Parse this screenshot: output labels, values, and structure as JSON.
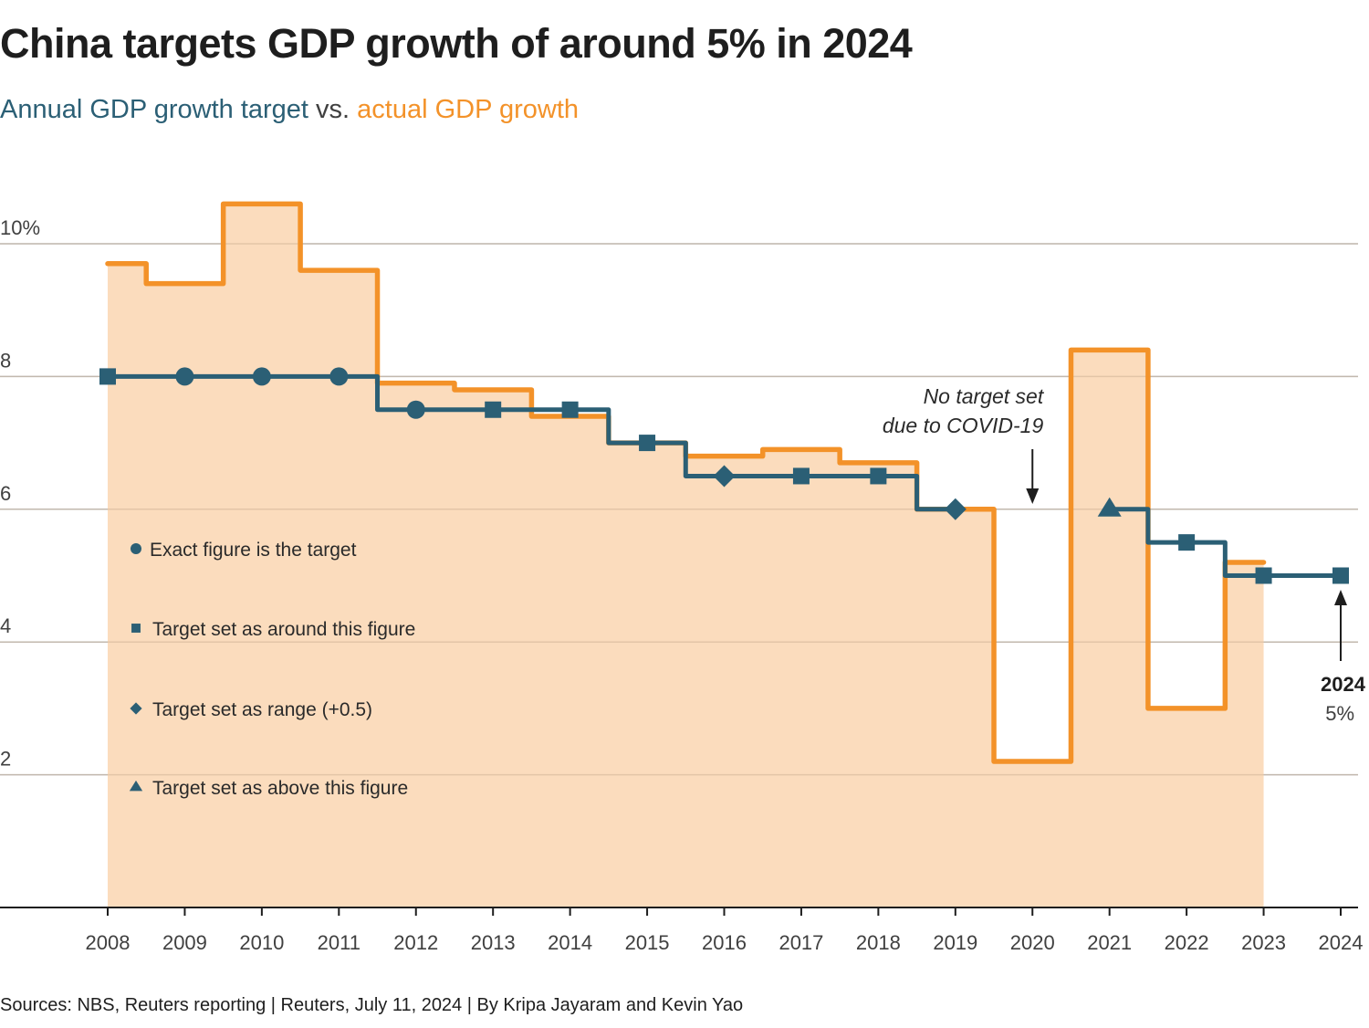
{
  "header": {
    "title": "China targets GDP growth of around 5% in 2024",
    "subtitle_target": "Annual GDP growth target",
    "subtitle_vs": " vs. ",
    "subtitle_actual": "actual GDP growth"
  },
  "footer": {
    "source": "Sources: NBS, Reuters reporting | Reuters, July 11, 2024 | By Kripa Jayaram and Kevin Yao"
  },
  "colors": {
    "target": "#2b5f75",
    "actual": "#f39229",
    "actual_fill": "#fbdcbd",
    "grid": "#c8c8c8",
    "axis": "#1e1e1e"
  },
  "chart_data": {
    "type": "line",
    "title": "China targets GDP growth of around 5% in 2024",
    "subtitle": "Annual GDP growth target vs. actual GDP growth",
    "xlabel": "",
    "ylabel": "",
    "ylim": [
      0,
      10.8
    ],
    "yticks": [
      {
        "value": 10,
        "label": "10%"
      },
      {
        "value": 8,
        "label": "8"
      },
      {
        "value": 6,
        "label": "6"
      },
      {
        "value": 4,
        "label": "4"
      },
      {
        "value": 2,
        "label": "2"
      }
    ],
    "x": [
      2008,
      2009,
      2010,
      2011,
      2012,
      2013,
      2014,
      2015,
      2016,
      2017,
      2018,
      2019,
      2020,
      2021,
      2022,
      2023,
      2024
    ],
    "grid": true,
    "series": [
      {
        "name": "actual GDP growth",
        "style": "step-area",
        "values": [
          9.7,
          9.4,
          10.6,
          9.6,
          7.9,
          7.8,
          7.4,
          7.0,
          6.8,
          6.9,
          6.7,
          6.0,
          2.2,
          8.4,
          3.0,
          5.2,
          null
        ]
      },
      {
        "name": "Annual GDP growth target",
        "style": "step-line-markers",
        "values": [
          8,
          8,
          8,
          8,
          7.5,
          7.5,
          7.5,
          7,
          6.5,
          6.5,
          6.5,
          6,
          null,
          6,
          5.5,
          5,
          5
        ],
        "markers": [
          "square",
          "circle",
          "circle",
          "circle",
          "circle",
          "square",
          "square",
          "square",
          "diamond",
          "square",
          "square",
          "diamond",
          null,
          "triangle",
          "square",
          "square",
          "square"
        ]
      }
    ],
    "legend": [
      {
        "marker": "circle",
        "label": "Exact figure is the target"
      },
      {
        "marker": "square",
        "label": "Target set as around this figure"
      },
      {
        "marker": "diamond",
        "label": "Target set as range (+0.5)"
      },
      {
        "marker": "triangle",
        "label": "Target set as above this figure"
      }
    ],
    "legend_placement": "bottom-left inside",
    "annotations": [
      {
        "year": 2020,
        "lines": [
          "No target set",
          "due to COVID-19"
        ],
        "arrow": "down"
      },
      {
        "year": 2024,
        "label": "2024",
        "value_label": "5%",
        "arrow": "up"
      }
    ]
  }
}
